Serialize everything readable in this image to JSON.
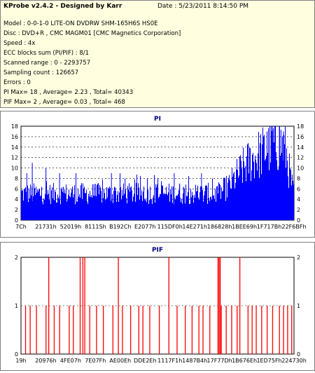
{
  "header": {
    "title": "KProbe v2.4.2 - Designed by Karr",
    "date": "Date : 5/23/2011 8:14:50 PM",
    "lines": [
      "Model : 0-0-1-0 LITE-ON DVDRW SHM-165H6S HS0E",
      "Disc : DVD+R , CMC MAGM01 [CMC Magnetics Corporation]",
      "Speed : 4x",
      "ECC blocks sum (PI/PIF) : 8/1",
      "Scanned range : 0 - 2293757",
      "Sampling count : 126657",
      "Errors : 0",
      "PI Max= 18 , Average= 2.23 , Total= 40343",
      "PIF Max= 2 , Average= 0.03 , Total= 468"
    ]
  },
  "colors": {
    "pi_bar": "#0000ff",
    "pif_bar": "#ff0000",
    "title": "#000080",
    "info_bg": "#ffffe0"
  },
  "chart_data": [
    {
      "type": "bar",
      "title": "PI",
      "ylim": [
        0,
        18
      ],
      "yticks": [
        0,
        2,
        4,
        6,
        8,
        10,
        12,
        14,
        16,
        18
      ],
      "xtick_labels": [
        "7Ch",
        "21731h",
        "52019h",
        "8111Sh",
        "B192Ch",
        "E2077h",
        "115DF0h",
        "14E271h",
        "186828h",
        "1BEE69h",
        "1F717Bh",
        "22F6BFh"
      ],
      "xlim": [
        124,
        2291391
      ],
      "grid": true,
      "baseline_level": 5,
      "profile": [
        [
          0,
          5.5
        ],
        [
          0.72,
          5.5
        ],
        [
          0.76,
          7
        ],
        [
          0.8,
          10
        ],
        [
          0.84,
          12.5
        ],
        [
          0.88,
          14
        ],
        [
          0.92,
          15.5
        ],
        [
          0.95,
          16
        ],
        [
          0.97,
          14
        ],
        [
          0.985,
          9
        ],
        [
          1,
          5
        ]
      ],
      "spikes": [
        [
          0.02,
          9
        ],
        [
          0.04,
          11
        ],
        [
          0.09,
          10
        ],
        [
          0.14,
          9
        ],
        [
          0.2,
          9
        ],
        [
          0.33,
          9
        ],
        [
          0.38,
          8
        ],
        [
          0.5,
          8
        ],
        [
          0.56,
          9
        ],
        [
          0.58,
          7
        ],
        [
          0.66,
          9
        ],
        [
          0.7,
          8
        ],
        [
          0.92,
          18
        ],
        [
          0.945,
          18
        ],
        [
          0.9,
          17
        ],
        [
          0.96,
          17
        ]
      ]
    },
    {
      "type": "bar",
      "title": "PIF",
      "ylim": [
        0,
        2
      ],
      "yticks": [
        0,
        1,
        2
      ],
      "xtick_labels": [
        "19h",
        "20976h",
        "4FE07h",
        "7E07Fh",
        "AE00Eh",
        "DDE2Eh",
        "1117F1h",
        "1487B4h",
        "17F77Dh",
        "1B676Eh",
        "1ED75Fh",
        "224730h"
      ],
      "xlim": [
        25,
        2246448
      ],
      "grid": true,
      "bars": [
        [
          0.015,
          1
        ],
        [
          0.032,
          1
        ],
        [
          0.055,
          1
        ],
        [
          0.09,
          1
        ],
        [
          0.1,
          2
        ],
        [
          0.12,
          1
        ],
        [
          0.14,
          1
        ],
        [
          0.175,
          1
        ],
        [
          0.19,
          1
        ],
        [
          0.215,
          2
        ],
        [
          0.225,
          2
        ],
        [
          0.232,
          2
        ],
        [
          0.25,
          1
        ],
        [
          0.275,
          1
        ],
        [
          0.3,
          1
        ],
        [
          0.335,
          1
        ],
        [
          0.355,
          2
        ],
        [
          0.37,
          1
        ],
        [
          0.4,
          1
        ],
        [
          0.43,
          1
        ],
        [
          0.445,
          1
        ],
        [
          0.47,
          1
        ],
        [
          0.505,
          1
        ],
        [
          0.54,
          2
        ],
        [
          0.57,
          1
        ],
        [
          0.6,
          1
        ],
        [
          0.625,
          1
        ],
        [
          0.65,
          1
        ],
        [
          0.665,
          1
        ],
        [
          0.69,
          1
        ],
        [
          0.72,
          2
        ],
        [
          0.724,
          2
        ],
        [
          0.728,
          2
        ],
        [
          0.732,
          1
        ],
        [
          0.75,
          1
        ],
        [
          0.77,
          1
        ],
        [
          0.79,
          1
        ],
        [
          0.8,
          2
        ],
        [
          0.83,
          1
        ],
        [
          0.845,
          1
        ],
        [
          0.86,
          1
        ],
        [
          0.88,
          1
        ],
        [
          0.9,
          1
        ],
        [
          0.92,
          1
        ],
        [
          0.945,
          1
        ],
        [
          0.96,
          1
        ],
        [
          0.975,
          1
        ],
        [
          0.99,
          1
        ]
      ]
    }
  ]
}
